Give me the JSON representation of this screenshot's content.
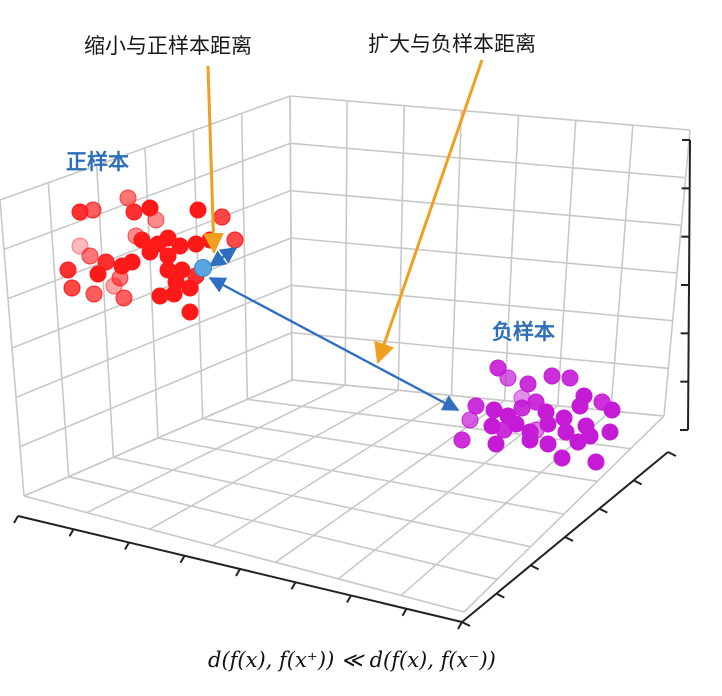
{
  "annotations": {
    "shrink_label": "缩小与正样本距离",
    "expand_label": "扩大与负样本距离"
  },
  "clusters": {
    "positive": {
      "label": "正样本",
      "color": "#ff1a1a",
      "label_color": "#2e6fb7"
    },
    "negative": {
      "label": "负样本",
      "color": "#c51ad6",
      "label_color": "#2e6fb7"
    }
  },
  "anchor": {
    "color": "#58a6e0"
  },
  "colors": {
    "callout_arrow": "#f0a020",
    "distance_arrow": "#2f6fc0",
    "grid": "#c8c8c8",
    "axis": "#222222"
  },
  "formula": "d(f(x), f(x⁺)) ≪ d(f(x), f(x⁻))"
}
